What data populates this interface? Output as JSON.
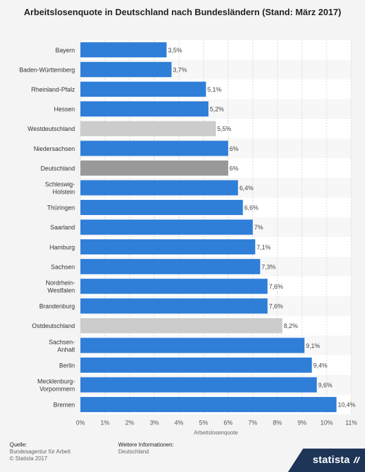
{
  "chart_data": {
    "type": "bar",
    "orientation": "horizontal",
    "title": "Arbeitslosenquote in Deutschland nach Bundesländern (Stand: März 2017)",
    "xlabel": "Arbeitslosenquote",
    "xlim": [
      0,
      11
    ],
    "xticks": [
      "0%",
      "1%",
      "2%",
      "3%",
      "4%",
      "5%",
      "6%",
      "7%",
      "8%",
      "9%",
      "10%",
      "11%"
    ],
    "grid": true,
    "categories": [
      "Bayern",
      "Baden-Württemberg",
      "Rheinland-Pfalz",
      "Hessen",
      "Westdeutschland",
      "Niedersachsen",
      "Deutschland",
      "Schleswig-Holstein",
      "Thüringen",
      "Saarland",
      "Hamburg",
      "Sachsen",
      "Nordrhein-Westfalen",
      "Brandenburg",
      "Ostdeutschland",
      "Sachsen-Anhalt",
      "Berlin",
      "Mecklenburg-Vorpommern",
      "Bremen"
    ],
    "category_lines": [
      [
        "Bayern"
      ],
      [
        "Baden-Württemberg"
      ],
      [
        "Rheinland-Pfalz"
      ],
      [
        "Hessen"
      ],
      [
        "Westdeutschland"
      ],
      [
        "Niedersachsen"
      ],
      [
        "Deutschland"
      ],
      [
        "Schleswig-",
        "Holstein"
      ],
      [
        "Thüringen"
      ],
      [
        "Saarland"
      ],
      [
        "Hamburg"
      ],
      [
        "Sachsen"
      ],
      [
        "Nordrhein-",
        "Westfalen"
      ],
      [
        "Brandenburg"
      ],
      [
        "Ostdeutschland"
      ],
      [
        "Sachsen-",
        "Anhalt"
      ],
      [
        "Berlin"
      ],
      [
        "Mecklenburg-",
        "Vorpommern"
      ],
      [
        "Bremen"
      ]
    ],
    "values": [
      3.5,
      3.7,
      5.1,
      5.2,
      5.5,
      6,
      6,
      6.4,
      6.6,
      7,
      7.1,
      7.3,
      7.6,
      7.6,
      8.2,
      9.1,
      9.4,
      9.6,
      10.4
    ],
    "value_labels": [
      "3,5%",
      "3,7%",
      "5,1%",
      "5,2%",
      "5,5%",
      "6%",
      "6%",
      "6,4%",
      "6,6%",
      "7%",
      "7,1%",
      "7,3%",
      "7,6%",
      "7,6%",
      "8,2%",
      "9,1%",
      "9,4%",
      "9,6%",
      "10,4%"
    ],
    "bar_colors": [
      "#2f7ed8",
      "#2f7ed8",
      "#2f7ed8",
      "#2f7ed8",
      "#cccccc",
      "#2f7ed8",
      "#999999",
      "#2f7ed8",
      "#2f7ed8",
      "#2f7ed8",
      "#2f7ed8",
      "#2f7ed8",
      "#2f7ed8",
      "#2f7ed8",
      "#cccccc",
      "#2f7ed8",
      "#2f7ed8",
      "#2f7ed8",
      "#2f7ed8"
    ]
  },
  "footer": {
    "source_label": "Quelle:",
    "source_line1": "Bundesagentur für Arbeit",
    "source_line2": "© Statista 2017",
    "more_label": "Weitere Informationen:",
    "more_line1": "Deutschland"
  },
  "logo": {
    "text": "statista"
  }
}
